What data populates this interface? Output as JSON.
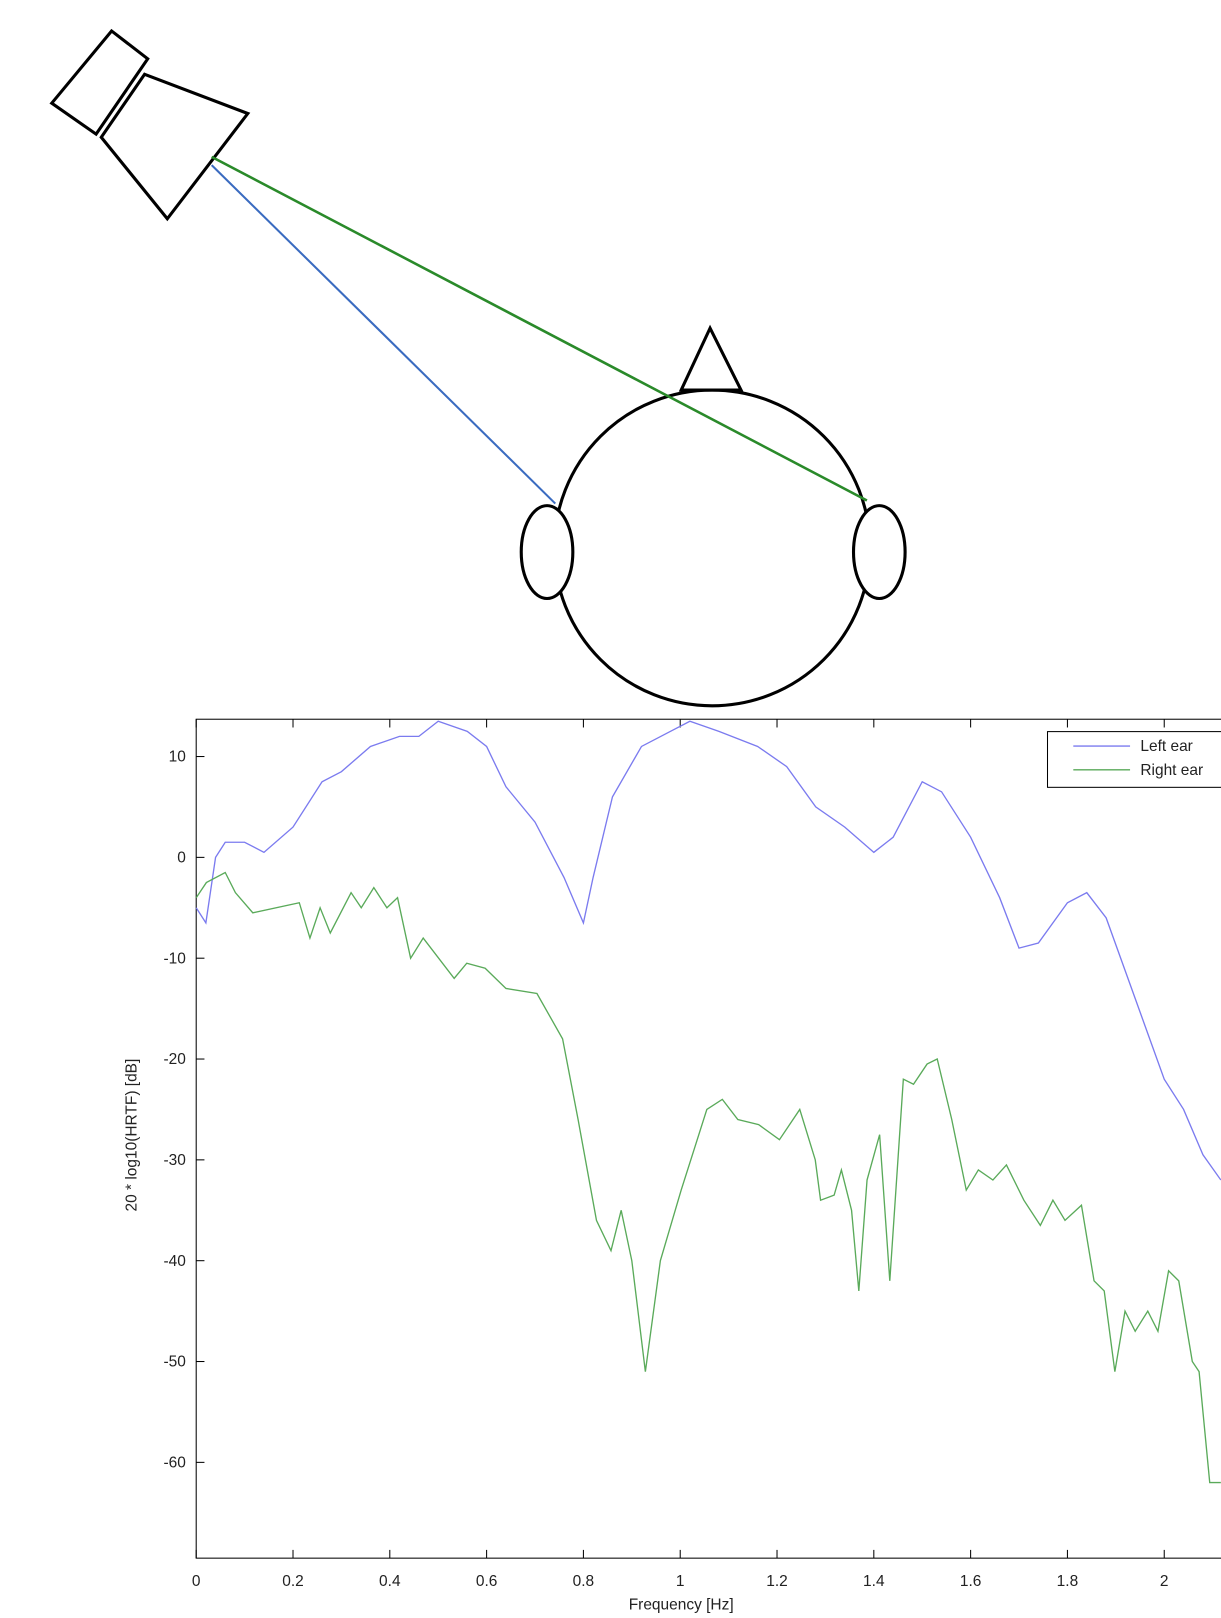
{
  "chart_data": {
    "type": "line",
    "xlabel": "Frequency [Hz]",
    "ylabel": "20 * log10(HRTF) [dB]",
    "xlim": [
      0,
      2.117
    ],
    "ylim": [
      -69.5,
      13.7
    ],
    "xticks": [
      0,
      0.2,
      0.4,
      0.6,
      0.8,
      1,
      1.2,
      1.4,
      1.6,
      1.8,
      2
    ],
    "yticks": [
      10,
      0,
      -10,
      -20,
      -30,
      -40,
      -50,
      -60
    ],
    "legend": "upper right",
    "series": [
      {
        "name": "Left ear",
        "color": "#7b7bef",
        "x": [
          0,
          0.02,
          0.04,
          0.06,
          0.1,
          0.14,
          0.2,
          0.26,
          0.3,
          0.36,
          0.42,
          0.46,
          0.5,
          0.56,
          0.6,
          0.64,
          0.7,
          0.76,
          0.8,
          0.82,
          0.86,
          0.92,
          0.98,
          1.02,
          1.08,
          1.16,
          1.22,
          1.28,
          1.34,
          1.4,
          1.44,
          1.5,
          1.54,
          1.6,
          1.66,
          1.7,
          1.74,
          1.8,
          1.84,
          1.88,
          1.94,
          2,
          2.04,
          2.08,
          2.117
        ],
        "values": [
          -5,
          -6.5,
          0,
          1.5,
          1.5,
          0.5,
          3,
          7.5,
          8.5,
          11,
          12,
          12,
          13.5,
          12.5,
          11,
          7,
          3.5,
          -2,
          -6.5,
          -2,
          6,
          11,
          12.5,
          13.5,
          12.5,
          11,
          9,
          5,
          3,
          0.5,
          2,
          7.5,
          6.5,
          2,
          -4,
          -9,
          -8.5,
          -4.5,
          -3.5,
          -6,
          -14,
          -22,
          -25,
          -29.5,
          -32
        ]
      },
      {
        "name": "Right ear",
        "color": "#5aaa5a",
        "x": [
          0,
          0.021,
          0.06,
          0.081,
          0.117,
          0.213,
          0.235,
          0.256,
          0.277,
          0.32,
          0.341,
          0.367,
          0.394,
          0.416,
          0.443,
          0.469,
          0.533,
          0.559,
          0.597,
          0.64,
          0.704,
          0.757,
          0.789,
          0.827,
          0.857,
          0.878,
          0.9,
          0.928,
          0.959,
          1.002,
          1.055,
          1.087,
          1.119,
          1.162,
          1.205,
          1.247,
          1.279,
          1.29,
          1.318,
          1.333,
          1.354,
          1.369,
          1.386,
          1.412,
          1.433,
          1.461,
          1.482,
          1.51,
          1.531,
          1.561,
          1.591,
          1.616,
          1.646,
          1.674,
          1.71,
          1.744,
          1.77,
          1.795,
          1.829,
          1.855,
          1.876,
          1.898,
          1.919,
          1.94,
          1.966,
          1.987,
          2.009,
          2.03,
          2.058,
          2.072,
          2.094,
          2.117
        ],
        "values": [
          -4,
          -2.5,
          -1.5,
          -3.5,
          -5.5,
          -4.5,
          -8,
          -5,
          -7.5,
          -3.5,
          -5,
          -3,
          -5,
          -4,
          -10,
          -8,
          -12,
          -10.5,
          -11,
          -13,
          -13.5,
          -18,
          -26,
          -36,
          -39,
          -35,
          -40,
          -51,
          -40,
          -33,
          -25,
          -24,
          -26,
          -26.5,
          -28,
          -25,
          -30,
          -34,
          -33.5,
          -31,
          -35,
          -43,
          -32,
          -27.5,
          -42,
          -22,
          -22.5,
          -20.5,
          -20,
          -26,
          -33,
          -31,
          -32,
          -30.5,
          -34,
          -36.5,
          -34,
          -36,
          -34.5,
          -42,
          -43,
          -51,
          -45,
          -47,
          -45,
          -47,
          -41,
          -42,
          -50,
          -51,
          -62,
          -62
        ]
      }
    ]
  }
}
